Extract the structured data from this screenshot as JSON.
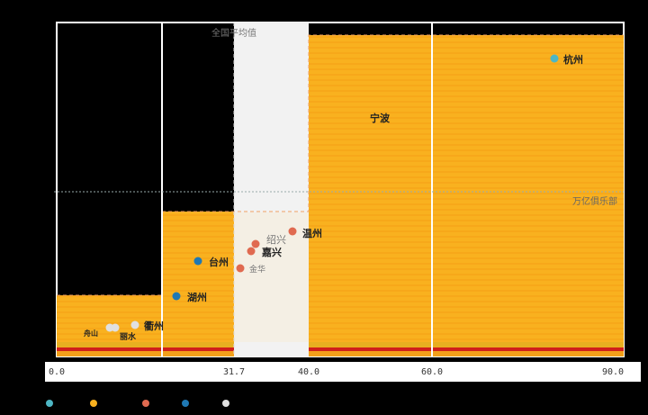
{
  "chart_data": {
    "type": "scatter",
    "title": "",
    "xlabel": "",
    "ylabel": "",
    "x_ticks": [
      "0.0",
      "31.7",
      "40.0",
      "60.0",
      "90.0"
    ],
    "x_tick_values": [
      0,
      31.7,
      40,
      60,
      90
    ],
    "reference_lines": [
      {
        "label": "全国平均值",
        "axis": "x",
        "value": 31.7
      },
      {
        "label": "万亿俱乐部",
        "axis": "y",
        "value": 0.52
      }
    ],
    "points": [
      {
        "name": "杭州",
        "x": 80.5,
        "y": 0.9,
        "group": 0
      },
      {
        "name": "宁波",
        "x": 0,
        "y": 0,
        "group": 1
      },
      {
        "name": "温州",
        "x": 37.7,
        "y": 0.38,
        "group": 2
      },
      {
        "name": "绍兴",
        "x": 33.0,
        "y": 0.35,
        "group": 2
      },
      {
        "name": "嘉兴",
        "x": 32.5,
        "y": 0.33,
        "group": 2
      },
      {
        "name": "金华",
        "x": 31.5,
        "y": 0.28,
        "group": 2
      },
      {
        "name": "台州",
        "x": 23.0,
        "y": 0.3,
        "group": 3
      },
      {
        "name": "湖州",
        "x": 21.5,
        "y": 0.2,
        "group": 3
      },
      {
        "name": "衢州",
        "x": 15.0,
        "y": 0.09,
        "group": 4
      },
      {
        "name": "舟山",
        "x": 9.5,
        "y": 0.08,
        "group": 4
      },
      {
        "name": "丽水",
        "x": 10.2,
        "y": 0.085,
        "group": 4
      }
    ],
    "legend": [
      {
        "color": "#4db6c4",
        "name": ""
      },
      {
        "color": "#f9b11f",
        "name": ""
      },
      {
        "color": "#e06a50",
        "name": ""
      },
      {
        "color": "#1f78b4",
        "name": ""
      },
      {
        "color": "#e0e0e0",
        "name": ""
      }
    ]
  },
  "labels": {
    "hangzhou": "杭州",
    "ningbo": "宁波",
    "wenzhou": "温州",
    "shaoxing": "绍兴",
    "jiaxing": "嘉兴",
    "jinhua": "金华",
    "taizhou": "台州",
    "huzhou": "湖州",
    "quzhou": "衢州",
    "zhoushan": "舟山",
    "lishui": "丽水",
    "national_avg": "全国平均值",
    "trillion_club": "万亿俱乐部"
  }
}
